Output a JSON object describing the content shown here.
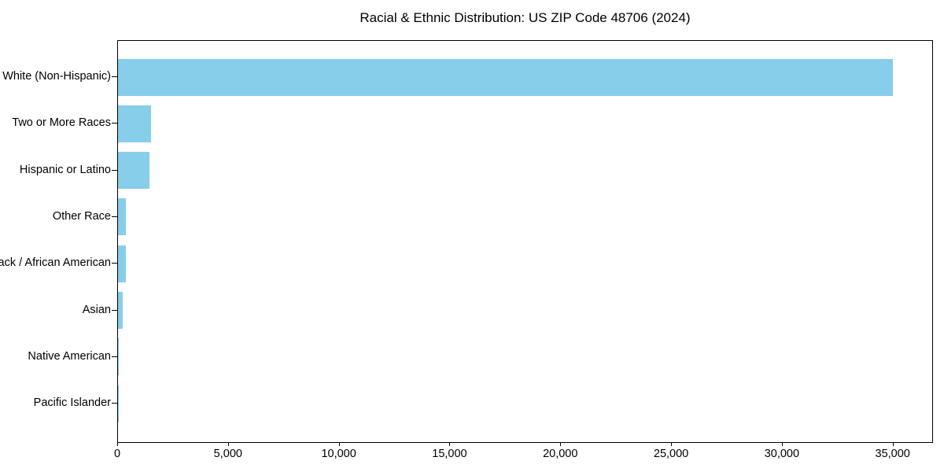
{
  "chart_data": {
    "type": "bar",
    "orientation": "horizontal",
    "title": "Racial & Ethnic Distribution: US ZIP Code 48706 (2024)",
    "xlabel": "",
    "ylabel": "",
    "categories": [
      "White (Non-Hispanic)",
      "Two or More Races",
      "Hispanic or Latino",
      "Other Race",
      "Black / African American",
      "Asian",
      "Native American",
      "Pacific Islander"
    ],
    "values": [
      34980,
      1480,
      1410,
      360,
      350,
      200,
      45,
      20
    ],
    "xlim": [
      0,
      36750
    ],
    "xticks": [
      0,
      5000,
      10000,
      15000,
      20000,
      25000,
      30000,
      35000
    ],
    "xtick_labels": [
      "0",
      "5,000",
      "10,000",
      "15,000",
      "20,000",
      "25,000",
      "30,000",
      "35,000"
    ],
    "bar_color": "#87CEEB",
    "axis_color": "#000000",
    "background_color": "#ffffff",
    "grid": false,
    "legend": null
  }
}
